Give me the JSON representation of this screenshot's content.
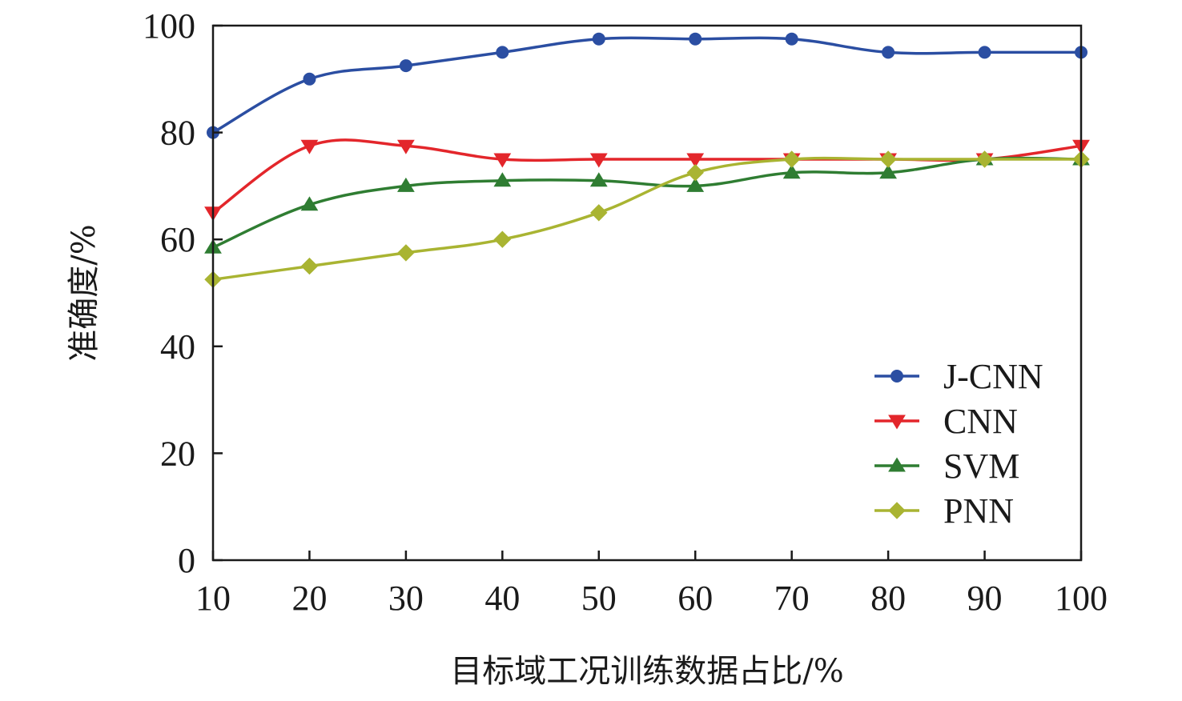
{
  "chart_data": {
    "type": "line",
    "title": "",
    "xlabel": "目标域工况训练数据占比/%",
    "ylabel": "准确度/%",
    "x": [
      10,
      20,
      30,
      40,
      50,
      60,
      70,
      80,
      90,
      100
    ],
    "xticks": [
      "10",
      "20",
      "30",
      "40",
      "50",
      "60",
      "70",
      "80",
      "90",
      "100"
    ],
    "yticks": [
      "0",
      "20",
      "40",
      "60",
      "80",
      "100"
    ],
    "xlim": [
      10,
      100
    ],
    "ylim": [
      0,
      100
    ],
    "grid": false,
    "legend_position": "bottom-right",
    "series": [
      {
        "name": "J-CNN",
        "color": "#2b4ea2",
        "marker": "circle",
        "values": [
          80,
          90,
          92.5,
          95,
          97.5,
          97.5,
          97.5,
          95,
          95,
          95
        ]
      },
      {
        "name": "CNN",
        "color": "#e3262b",
        "marker": "triangle-down",
        "values": [
          65,
          77.5,
          77.5,
          75,
          75,
          75,
          75,
          75,
          75,
          77.5
        ]
      },
      {
        "name": "SVM",
        "color": "#2f7d32",
        "marker": "triangle-up",
        "values": [
          58.5,
          66.5,
          70,
          71,
          71,
          70,
          72.5,
          72.5,
          75,
          75
        ]
      },
      {
        "name": "PNN",
        "color": "#a9b432",
        "marker": "diamond",
        "values": [
          52.5,
          55,
          57.5,
          60,
          65,
          72.5,
          75,
          75,
          75,
          75
        ]
      }
    ]
  }
}
